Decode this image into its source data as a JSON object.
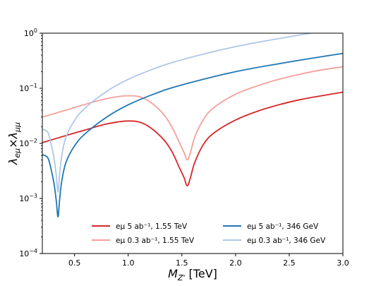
{
  "chart_data": {
    "type": "line",
    "xlabel": "M_{Z'} [TeV]",
    "ylabel": "λ_{eμ}×λ_{μμ}",
    "xlim": [
      0.2,
      3.0
    ],
    "ylim": [
      0.0001,
      1
    ],
    "yscale": "log",
    "grid": false,
    "legend_position": "bottom-right",
    "x_ticks": [
      {
        "value": 0.5,
        "label": "0.5"
      },
      {
        "value": 1.0,
        "label": "1.0"
      },
      {
        "value": 1.5,
        "label": "1.5"
      },
      {
        "value": 2.0,
        "label": "2.0"
      },
      {
        "value": 2.5,
        "label": "2.5"
      },
      {
        "value": 3.0,
        "label": "3.0"
      }
    ],
    "y_ticks": [
      {
        "value": 0.0001,
        "base": "10",
        "exp": "−4"
      },
      {
        "value": 0.001,
        "base": "10",
        "exp": "−3"
      },
      {
        "value": 0.01,
        "base": "10",
        "exp": "−2"
      },
      {
        "value": 0.1,
        "base": "10",
        "exp": "−1"
      },
      {
        "value": 1,
        "base": "10",
        "exp": "0"
      }
    ],
    "series": [
      {
        "name": "eμ 5 ab⁻¹, 1.55 TeV",
        "color": "#d62728",
        "x": [
          0.2,
          0.4,
          0.6,
          0.8,
          1.0,
          1.15,
          1.3,
          1.4,
          1.48,
          1.52,
          1.55,
          1.58,
          1.62,
          1.7,
          1.8,
          2.0,
          2.2,
          2.4,
          2.6,
          2.8,
          3.0
        ],
        "y": [
          0.0103,
          0.0135,
          0.0175,
          0.0225,
          0.0255,
          0.0225,
          0.0135,
          0.0075,
          0.0035,
          0.0024,
          0.0017,
          0.0024,
          0.0045,
          0.0095,
          0.0155,
          0.0265,
          0.038,
          0.05,
          0.062,
          0.073,
          0.085
        ]
      },
      {
        "name": "eμ 0.3 ab⁻¹, 1.55 TeV",
        "color": "#f4a09b",
        "x": [
          0.2,
          0.4,
          0.6,
          0.8,
          1.0,
          1.15,
          1.3,
          1.4,
          1.48,
          1.52,
          1.55,
          1.58,
          1.62,
          1.7,
          1.8,
          2.0,
          2.2,
          2.4,
          2.6,
          2.8,
          3.0
        ],
        "y": [
          0.03,
          0.039,
          0.051,
          0.065,
          0.073,
          0.065,
          0.039,
          0.021,
          0.01,
          0.0068,
          0.005,
          0.0068,
          0.013,
          0.027,
          0.045,
          0.078,
          0.11,
          0.145,
          0.18,
          0.215,
          0.245
        ]
      },
      {
        "name": "eμ 5 ab⁻¹, 346 GeV",
        "color": "#1f77b4",
        "x": [
          0.2,
          0.25,
          0.28,
          0.31,
          0.33,
          0.346,
          0.36,
          0.38,
          0.42,
          0.5,
          0.6,
          0.8,
          1.0,
          1.25,
          1.5,
          2.0,
          2.5,
          3.0
        ],
        "y": [
          0.0062,
          0.0055,
          0.0035,
          0.0018,
          0.0009,
          0.00046,
          0.0009,
          0.002,
          0.0045,
          0.009,
          0.015,
          0.03,
          0.05,
          0.08,
          0.115,
          0.2,
          0.3,
          0.43
        ]
      },
      {
        "name": "eμ 0.3 ab⁻¹, 346 GeV",
        "color": "#aec7e8",
        "x": [
          0.2,
          0.25,
          0.28,
          0.31,
          0.33,
          0.346,
          0.36,
          0.38,
          0.42,
          0.5,
          0.6,
          0.8,
          1.0,
          1.25,
          1.5,
          2.0,
          2.5,
          2.7
        ],
        "y": [
          0.018,
          0.016,
          0.01,
          0.0052,
          0.0026,
          0.0013,
          0.0026,
          0.0058,
          0.013,
          0.026,
          0.044,
          0.088,
          0.145,
          0.23,
          0.33,
          0.57,
          0.86,
          1.0
        ]
      }
    ]
  }
}
